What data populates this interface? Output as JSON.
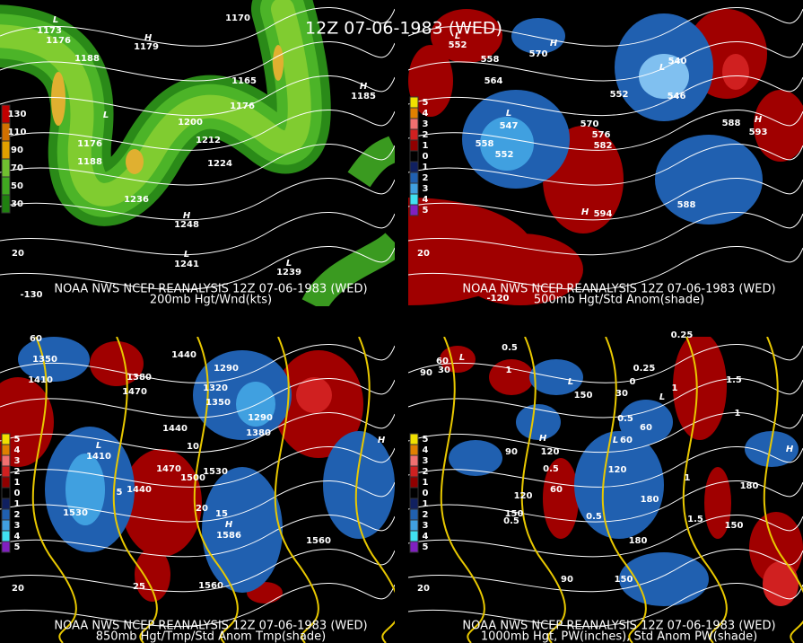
{
  "title": "12Z 07-06-1983 (WED)",
  "panels": [
    {
      "caption": [
        "NOAA NWS NCEP REANALYSIS 12Z 07-06-1983 (WED)",
        "200mb Hgt/Wnd(kts)"
      ],
      "legend": [
        "130",
        "110",
        "90",
        "70",
        "50",
        "30"
      ],
      "labels": [
        "L",
        "1173",
        "1176",
        "1188",
        "H",
        "1179",
        "1170",
        "1165",
        "H",
        "1185",
        "1176",
        "L",
        "1176",
        "1188",
        "1200",
        "1212",
        "1224",
        "1236",
        "H",
        "1248",
        "L",
        "1241",
        "L",
        "1239",
        "-130",
        "20"
      ]
    },
    {
      "caption": [
        "NOAA NWS NCEP REANALYSIS 12Z 07-06-1983 (WED)",
        "500mb Hgt/Std Anom(shade)"
      ],
      "legend": [
        "5",
        "4",
        "3",
        "2",
        "1",
        "0",
        "1",
        "2",
        "3",
        "4",
        "5"
      ],
      "labels": [
        "L",
        "552",
        "558",
        "564",
        "H",
        "570",
        "L",
        "540",
        "546",
        "552",
        "L",
        "547",
        "558",
        "552",
        "570",
        "576",
        "582",
        "588",
        "H",
        "593",
        "H",
        "594",
        "588",
        "-120",
        "20"
      ]
    },
    {
      "caption": [
        "NOAA NWS NCEP REANALYSIS 12Z 07-06-1983 (WED)",
        "850mb Hgt/Tmp/Std Anom Tmp(shade)"
      ],
      "legend": [
        "5",
        "4",
        "3",
        "2",
        "1",
        "0",
        "1",
        "2",
        "3",
        "4",
        "5"
      ],
      "labels": [
        "1350",
        "1410",
        "1380",
        "1470",
        "1440",
        "1320",
        "1350",
        "1290",
        "1290",
        "1380",
        "1440",
        "L",
        "1410",
        "10",
        "1470",
        "1500",
        "1530",
        "1440",
        "5",
        "20",
        "15",
        "1530",
        "H",
        "1586",
        "1560",
        "1560",
        "25",
        "H",
        "60",
        "20"
      ]
    },
    {
      "caption": [
        "NOAA NWS NCEP REANALYSIS 12Z 07-06-1983 (WED)",
        "1000mb Hgt, PW(inches), Std Anom PW(shade)"
      ],
      "legend": [
        "5",
        "4",
        "3",
        "2",
        "1",
        "0",
        "1",
        "2",
        "3",
        "4",
        "5"
      ],
      "labels": [
        "0.5",
        "60",
        "30",
        "90",
        "L",
        "1",
        "L",
        "150",
        "30",
        "0",
        "L",
        "60",
        "0.5",
        "1",
        "0.25",
        "0.25",
        "1.5",
        "1",
        "H",
        "120",
        "90",
        "L",
        "60",
        "0.5",
        "120",
        "120",
        "60",
        "0.5",
        "180",
        "1",
        "1.5",
        "150",
        "0.5",
        "180",
        "150",
        "180",
        "90",
        "150",
        "H",
        "20"
      ]
    }
  ]
}
